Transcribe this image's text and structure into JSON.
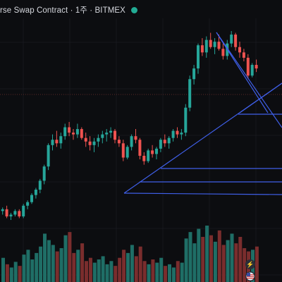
{
  "header": {
    "title": "rse Swap Contract · 1주 · BITMEX"
  },
  "colors": {
    "background": "#0c0d10",
    "up": "#26a69a",
    "down": "#ef5350",
    "drawing": "#3f5fe8",
    "live_status": "#22ab94"
  },
  "icons": {
    "live": "live-status-dot",
    "bolt": "lightning-icon",
    "flag": "flag-icon"
  },
  "chart_data": {
    "type": "candlestick",
    "note_scale": "price axis not visible; values are relative price units",
    "grid": true,
    "candles": [
      [
        50,
        52,
        48,
        51
      ],
      [
        51,
        53,
        46,
        47
      ],
      [
        47,
        49,
        45,
        48
      ],
      [
        48,
        51,
        47,
        50
      ],
      [
        50,
        51,
        46,
        47
      ],
      [
        47,
        54,
        46,
        53
      ],
      [
        53,
        56,
        51,
        55
      ],
      [
        55,
        60,
        54,
        59
      ],
      [
        59,
        63,
        57,
        62
      ],
      [
        62,
        68,
        60,
        67
      ],
      [
        67,
        76,
        65,
        75
      ],
      [
        75,
        88,
        73,
        87
      ],
      [
        87,
        93,
        84,
        90
      ],
      [
        90,
        95,
        86,
        88
      ],
      [
        88,
        94,
        85,
        92
      ],
      [
        92,
        99,
        90,
        97
      ],
      [
        97,
        100,
        92,
        94
      ],
      [
        94,
        96,
        90,
        93
      ],
      [
        93,
        99,
        91,
        96
      ],
      [
        96,
        97,
        90,
        91
      ],
      [
        91,
        94,
        86,
        89
      ],
      [
        89,
        92,
        84,
        87
      ],
      [
        87,
        91,
        83,
        89
      ],
      [
        89,
        93,
        86,
        91
      ],
      [
        91,
        95,
        88,
        93
      ],
      [
        93,
        96,
        89,
        94
      ],
      [
        94,
        97,
        91,
        95
      ],
      [
        95,
        96,
        88,
        90
      ],
      [
        90,
        92,
        86,
        88
      ],
      [
        88,
        90,
        78,
        80
      ],
      [
        80,
        87,
        79,
        86
      ],
      [
        86,
        93,
        84,
        92
      ],
      [
        92,
        96,
        88,
        90
      ],
      [
        90,
        91,
        79,
        81
      ],
      [
        81,
        83,
        76,
        78
      ],
      [
        78,
        85,
        77,
        84
      ],
      [
        84,
        87,
        80,
        82
      ],
      [
        82,
        86,
        79,
        85
      ],
      [
        85,
        91,
        83,
        90
      ],
      [
        90,
        93,
        86,
        88
      ],
      [
        88,
        92,
        85,
        91
      ],
      [
        91,
        96,
        89,
        95
      ],
      [
        95,
        97,
        91,
        93
      ],
      [
        93,
        96,
        90,
        94
      ],
      [
        94,
        110,
        92,
        108
      ],
      [
        108,
        126,
        106,
        124
      ],
      [
        124,
        132,
        121,
        130
      ],
      [
        130,
        144,
        127,
        143
      ],
      [
        143,
        147,
        137,
        139
      ],
      [
        139,
        148,
        136,
        146
      ],
      [
        146,
        150,
        141,
        142
      ],
      [
        142,
        147,
        138,
        145
      ],
      [
        145,
        149,
        140,
        141
      ],
      [
        141,
        144,
        135,
        137
      ],
      [
        137,
        146,
        135,
        144
      ],
      [
        144,
        151,
        142,
        149
      ],
      [
        149,
        150,
        140,
        142
      ],
      [
        142,
        145,
        136,
        139
      ],
      [
        139,
        141,
        134,
        136
      ],
      [
        136,
        138,
        124,
        126
      ],
      [
        126,
        133,
        125,
        132
      ],
      [
        132,
        135,
        128,
        130
      ]
    ],
    "volume": [
      30,
      22,
      18,
      25,
      20,
      34,
      40,
      28,
      36,
      44,
      60,
      52,
      46,
      38,
      42,
      58,
      62,
      36,
      40,
      48,
      26,
      30,
      24,
      28,
      32,
      22,
      26,
      20,
      30,
      40,
      36,
      46,
      32,
      44,
      26,
      22,
      28,
      24,
      30,
      20,
      22,
      18,
      26,
      24,
      54,
      62,
      48,
      66,
      56,
      70,
      58,
      50,
      64,
      46,
      52,
      60,
      48,
      56,
      42,
      38,
      40,
      44
    ],
    "drawings": {
      "description": "user-drawn trend lines and horizontal rays"
    }
  }
}
